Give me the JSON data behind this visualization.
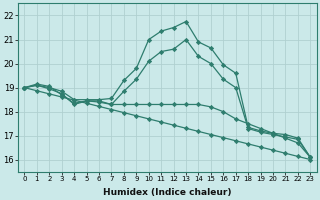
{
  "xlabel": "Humidex (Indice chaleur)",
  "bg_color": "#cbe9e9",
  "grid_color": "#b0d0d0",
  "line_color": "#2e7d6e",
  "xlim": [
    -0.5,
    23.5
  ],
  "ylim": [
    15.5,
    22.5
  ],
  "xticks": [
    0,
    1,
    2,
    3,
    4,
    5,
    6,
    7,
    8,
    9,
    10,
    11,
    12,
    13,
    14,
    15,
    16,
    17,
    18,
    19,
    20,
    21,
    22,
    23
  ],
  "yticks": [
    16,
    17,
    18,
    19,
    20,
    21,
    22
  ],
  "series": [
    {
      "x": [
        0,
        1,
        2,
        3,
        4,
        5,
        6,
        7,
        8,
        9,
        10,
        11,
        12,
        13,
        14,
        15,
        16,
        17,
        18,
        19,
        20,
        21,
        22,
        23
      ],
      "y": [
        19.0,
        19.1,
        19.0,
        18.85,
        18.5,
        18.5,
        18.5,
        18.55,
        19.3,
        19.8,
        21.0,
        21.35,
        21.5,
        21.75,
        20.9,
        20.65,
        19.95,
        19.6,
        17.35,
        17.2,
        17.1,
        17.05,
        16.9,
        16.1
      ]
    },
    {
      "x": [
        0,
        1,
        2,
        3,
        4,
        5,
        6,
        7,
        8,
        9,
        10,
        11,
        12,
        13,
        14,
        15,
        16,
        17,
        18,
        19,
        20,
        21,
        22,
        23
      ],
      "y": [
        19.0,
        19.15,
        19.05,
        18.7,
        18.35,
        18.45,
        18.45,
        18.3,
        18.85,
        19.35,
        20.1,
        20.5,
        20.6,
        21.0,
        20.3,
        20.0,
        19.35,
        19.0,
        17.3,
        17.15,
        17.05,
        16.95,
        16.85,
        16.1
      ]
    },
    {
      "x": [
        0,
        1,
        2,
        3,
        4,
        5,
        6,
        7,
        8,
        9,
        10,
        11,
        12,
        13,
        14,
        15,
        16,
        17,
        18,
        19,
        20,
        21,
        22,
        23
      ],
      "y": [
        19.0,
        19.1,
        18.95,
        18.75,
        18.3,
        18.45,
        18.4,
        18.3,
        18.3,
        18.3,
        18.3,
        18.3,
        18.3,
        18.3,
        18.3,
        18.2,
        18.0,
        17.7,
        17.5,
        17.3,
        17.1,
        16.9,
        16.7,
        16.1
      ]
    },
    {
      "x": [
        0,
        1,
        2,
        3,
        4,
        5,
        6,
        7,
        8,
        9,
        10,
        11,
        12,
        13,
        14,
        15,
        16,
        17,
        18,
        19,
        20,
        21,
        22,
        23
      ],
      "y": [
        19.0,
        18.87,
        18.74,
        18.61,
        18.48,
        18.35,
        18.22,
        18.09,
        17.96,
        17.83,
        17.7,
        17.57,
        17.44,
        17.31,
        17.18,
        17.05,
        16.92,
        16.79,
        16.66,
        16.53,
        16.4,
        16.27,
        16.14,
        16.01
      ]
    }
  ]
}
